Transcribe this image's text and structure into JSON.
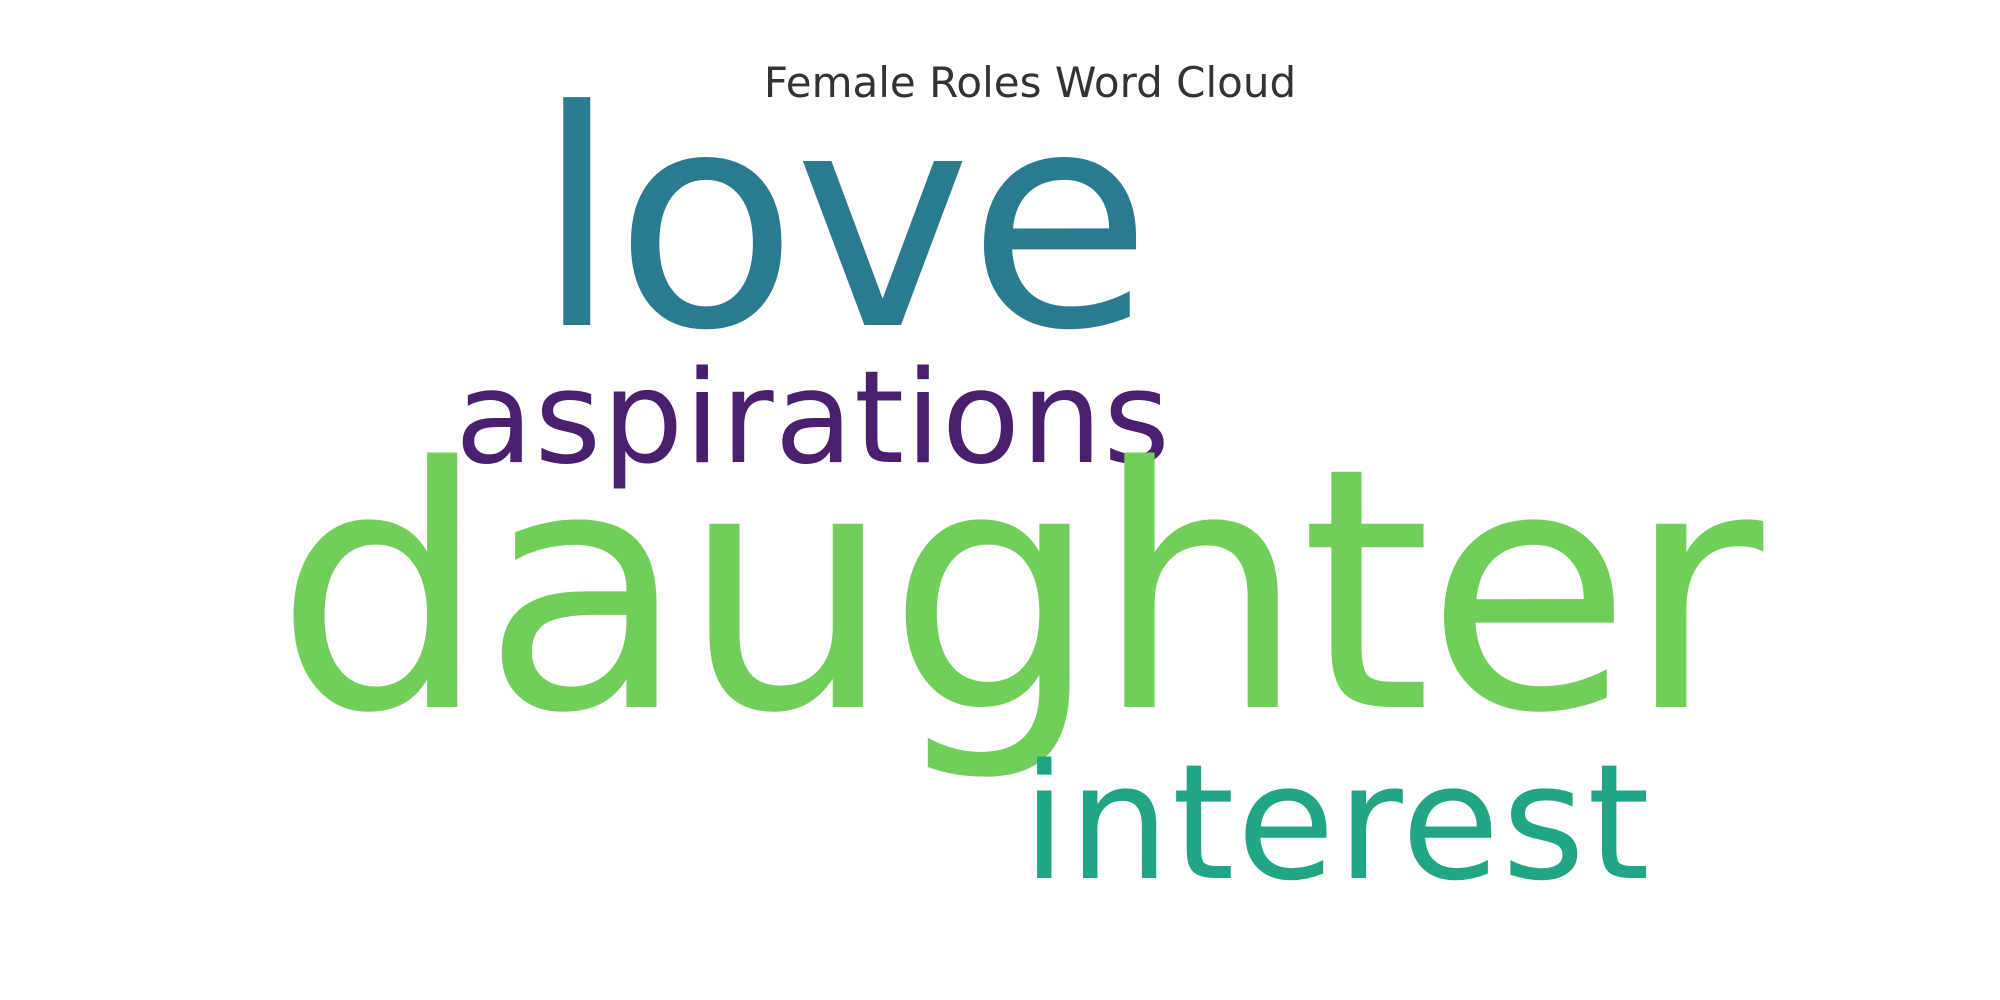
{
  "title": "Female Roles Word Cloud",
  "words": [
    {
      "text": "love",
      "color": "#2a7b8f"
    },
    {
      "text": "aspirations",
      "color": "#4a1f6e"
    },
    {
      "text": "daughter",
      "color": "#72ce5b"
    },
    {
      "text": "interest",
      "color": "#22a585"
    }
  ]
}
